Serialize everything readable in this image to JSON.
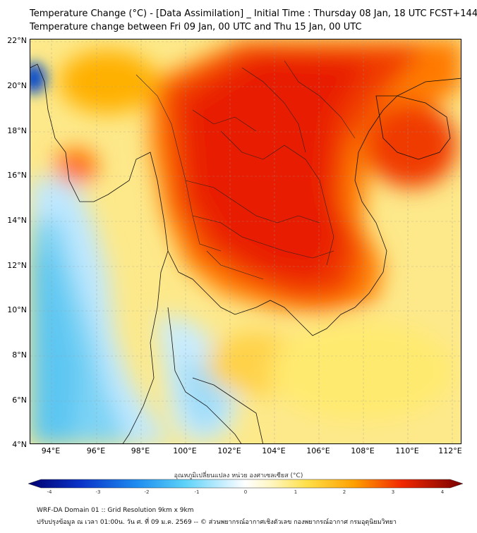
{
  "title_line1": "Temperature Change (°C) - [Data Assimilation] _ Initial Time : Thursday 08 Jan, 18 UTC FCST+144",
  "title_line2": "Temperature change between Fri 09 Jan, 00 UTC and Thu 15 Jan, 00 UTC",
  "lat_ticks": [
    "22°N",
    "20°N",
    "18°N",
    "16°N",
    "14°N",
    "12°N",
    "10°N",
    "8°N",
    "6°N",
    "4°N"
  ],
  "lon_ticks": [
    "94°E",
    "96°E",
    "98°E",
    "100°E",
    "102°E",
    "104°E",
    "106°E",
    "108°E",
    "110°E",
    "112°E"
  ],
  "colorbar": {
    "label": "อุณหภูมิเปลี่ยนแปลง หน่วย องศาเซลเซียส (°C)",
    "ticks": [
      "-4",
      "-3",
      "-2",
      "-1",
      "0",
      "1",
      "2",
      "3",
      "4"
    ],
    "min": -4,
    "max": 4
  },
  "footer_line1": "WRF-DA Domain 01 :: Grid Resolution 9km x 9km",
  "footer_line2": "ปรับปรุงข้อมูล ณ เวลา 01:00น. วัน ศ. ที่ 09 ม.ค. 2569 -- © ส่วนพยากรณ์อากาศเชิงตัวเลข กองพยากรณ์อากาศ กรมอุตุนิยมวิทยา",
  "colors": {
    "strong_warming": "#e81a00",
    "warming": "#ff8c00",
    "slight_warming": "#fff06a",
    "near_zero": "#ffffff",
    "slight_cooling": "#a8e8ff",
    "cooling": "#26b4f0",
    "strong_cooling": "#0a50c8"
  }
}
